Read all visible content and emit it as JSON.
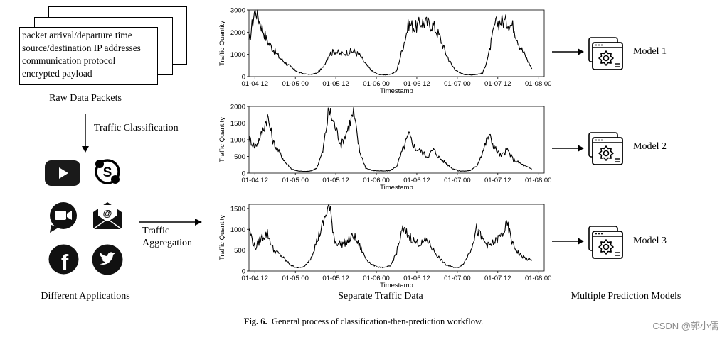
{
  "raw_packets": {
    "lines": [
      "packet arrival/departure time",
      "source/destination IP addresses",
      "communication protocol",
      "encrypted payload"
    ],
    "label": "Raw Data Packets"
  },
  "classification_label": "Traffic Classification",
  "applications": {
    "label": "Different Applications",
    "icons": [
      "youtube-icon",
      "skype-icon",
      "zoom-icon",
      "email-icon",
      "facebook-icon",
      "twitter-icon"
    ]
  },
  "aggregation_label": {
    "line1": "Traffic",
    "line2": "Aggregation"
  },
  "separate_label": "Separate Traffic Data",
  "models": {
    "label": "Multiple Prediction Models",
    "items": [
      "Model 1",
      "Model 2",
      "Model 3"
    ]
  },
  "caption": {
    "prefix": "Fig. 6.",
    "text": "General process of classification-then-prediction workflow."
  },
  "watermark": "CSDN @郭小儒",
  "chart_data": [
    {
      "type": "line",
      "title": "",
      "xlabel": "Timestamp",
      "ylabel": "Traffic Quantity",
      "xlim": [
        0,
        96
      ],
      "ylim": [
        0,
        3000
      ],
      "x_ticks": [
        "01-04 12",
        "01-05 00",
        "01-05 12",
        "01-06 00",
        "01-06 12",
        "01-07 00",
        "01-07 12",
        "01-08 00"
      ],
      "y_ticks": [
        0,
        1000,
        2000,
        3000
      ],
      "series": [
        {
          "x": [
            0,
            2,
            4,
            6,
            8,
            10,
            12,
            14,
            16,
            18,
            20,
            22,
            24,
            26,
            28,
            30,
            32,
            34,
            36,
            38,
            40,
            42,
            44,
            46,
            48,
            50,
            52,
            54,
            56,
            58,
            60,
            62,
            64,
            66,
            68,
            70,
            72,
            74,
            76,
            78,
            80,
            82,
            84,
            86,
            88,
            90,
            92
          ],
          "values": [
            1500,
            3100,
            2300,
            1600,
            1200,
            850,
            600,
            380,
            200,
            120,
            100,
            150,
            400,
            1000,
            1150,
            1000,
            1100,
            1150,
            950,
            550,
            250,
            100,
            80,
            100,
            250,
            1300,
            2400,
            2200,
            2450,
            2400,
            2300,
            1800,
            1050,
            500,
            200,
            100,
            80,
            100,
            150,
            1000,
            2350,
            2500,
            2450,
            2250,
            1400,
            900,
            350
          ]
        }
      ]
    },
    {
      "type": "line",
      "title": "",
      "xlabel": "Timestamp",
      "ylabel": "Traffic Quantity",
      "xlim": [
        0,
        96
      ],
      "ylim": [
        0,
        2000
      ],
      "x_ticks": [
        "01-04 12",
        "01-05 00",
        "01-05 12",
        "01-06 00",
        "01-06 12",
        "01-07 00",
        "01-07 12",
        "01-08 00"
      ],
      "y_ticks": [
        0,
        500,
        1000,
        1500,
        2000
      ],
      "series": [
        {
          "x": [
            0,
            2,
            4,
            6,
            8,
            10,
            12,
            14,
            16,
            18,
            20,
            22,
            24,
            26,
            28,
            30,
            32,
            34,
            36,
            38,
            40,
            42,
            44,
            46,
            48,
            50,
            52,
            54,
            56,
            58,
            60,
            62,
            64,
            66,
            68,
            70,
            72,
            74,
            76,
            78,
            80,
            82,
            84,
            86,
            88,
            90,
            92
          ],
          "values": [
            1050,
            780,
            1150,
            1700,
            900,
            600,
            300,
            120,
            60,
            50,
            60,
            150,
            650,
            1900,
            1400,
            850,
            1300,
            1800,
            650,
            150,
            80,
            70,
            60,
            80,
            200,
            700,
            1150,
            750,
            650,
            500,
            700,
            450,
            300,
            150,
            70,
            60,
            80,
            200,
            650,
            1150,
            750,
            500,
            700,
            400,
            300,
            200,
            120
          ]
        }
      ]
    },
    {
      "type": "line",
      "title": "",
      "xlabel": "Timestamp",
      "ylabel": "Traffic Quantity",
      "xlim": [
        0,
        96
      ],
      "ylim": [
        0,
        1600
      ],
      "x_ticks": [
        "01-04 12",
        "01-05 00",
        "01-05 12",
        "01-06 00",
        "01-06 12",
        "01-07 00",
        "01-07 12",
        "01-08 00"
      ],
      "y_ticks": [
        0,
        500,
        1000,
        1500
      ],
      "series": [
        {
          "x": [
            0,
            2,
            4,
            6,
            8,
            10,
            12,
            14,
            16,
            18,
            20,
            22,
            24,
            26,
            28,
            30,
            32,
            34,
            36,
            38,
            40,
            42,
            44,
            46,
            48,
            50,
            52,
            54,
            56,
            58,
            60,
            62,
            64,
            66,
            68,
            70,
            72,
            74,
            76,
            78,
            80,
            82,
            84,
            86,
            88,
            90,
            92
          ],
          "values": [
            1000,
            550,
            800,
            900,
            500,
            400,
            250,
            120,
            80,
            100,
            300,
            700,
            1100,
            1600,
            700,
            650,
            700,
            850,
            600,
            300,
            150,
            100,
            80,
            120,
            450,
            1000,
            850,
            700,
            650,
            750,
            500,
            300,
            150,
            100,
            80,
            200,
            500,
            1000,
            750,
            600,
            700,
            850,
            1100,
            600,
            400,
            300,
            250
          ]
        }
      ]
    }
  ]
}
